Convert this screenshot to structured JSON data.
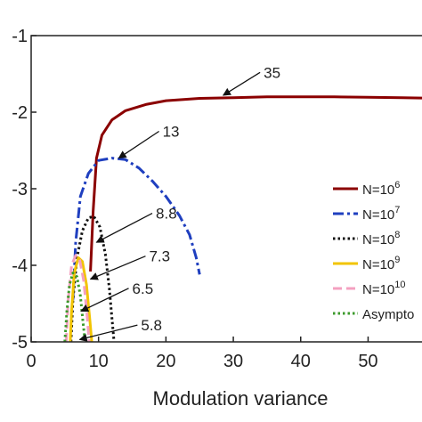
{
  "chart_data": {
    "type": "line",
    "title": "",
    "xlabel": "Modulation variance",
    "ylabel": "",
    "xlim": [
      0,
      58
    ],
    "ylim": [
      -5,
      -1
    ],
    "x_ticks": [
      "0",
      "10",
      "20",
      "30",
      "40",
      "50"
    ],
    "y_ticks": [
      "-1",
      "-2",
      "-3",
      "-4",
      "-5"
    ],
    "grid": false,
    "legend_position": "right",
    "series": [
      {
        "name": "N=10^6",
        "legend_base": "N=10",
        "legend_exp": "6",
        "color": "#8b0000",
        "dash": "solid",
        "x": [
          8.8,
          9.2,
          9.7,
          10.5,
          12,
          14,
          17,
          20,
          25,
          30,
          35,
          40,
          45,
          50,
          55,
          58
        ],
        "y": [
          -4.08,
          -3.3,
          -2.6,
          -2.3,
          -2.1,
          -1.98,
          -1.9,
          -1.85,
          -1.82,
          -1.81,
          -1.8,
          -1.8,
          -1.8,
          -1.805,
          -1.81,
          -1.815
        ]
      },
      {
        "name": "N=10^7",
        "legend_base": "N=10",
        "legend_exp": "7",
        "color": "#1f3fbf",
        "dash": "dash-dot",
        "x": [
          6.2,
          6.6,
          7.3,
          8.5,
          10,
          12,
          14,
          16,
          18,
          20,
          22,
          23.5,
          24.5,
          25
        ],
        "y": [
          -4.45,
          -3.7,
          -3.1,
          -2.8,
          -2.63,
          -2.6,
          -2.62,
          -2.73,
          -2.9,
          -3.1,
          -3.35,
          -3.6,
          -3.9,
          -4.12
        ]
      },
      {
        "name": "N=10^8",
        "legend_base": "N=10",
        "legend_exp": "8",
        "color": "#111111",
        "dash": "dotted",
        "x": [
          5.9,
          6.2,
          6.8,
          7.6,
          8.5,
          9.3,
          10.2,
          11,
          11.6,
          12,
          12.3
        ],
        "y": [
          -5.0,
          -4.45,
          -3.9,
          -3.55,
          -3.38,
          -3.36,
          -3.5,
          -3.85,
          -4.3,
          -4.7,
          -5.0
        ]
      },
      {
        "name": "N=10^9",
        "legend_base": "N=10",
        "legend_exp": "9",
        "color": "#f2c400",
        "dash": "solid",
        "x": [
          5.8,
          6,
          6.4,
          7,
          7.6,
          8.2,
          8.7,
          9
        ],
        "y": [
          -5.0,
          -4.6,
          -4.1,
          -3.9,
          -3.95,
          -4.25,
          -4.7,
          -5.0
        ]
      },
      {
        "name": "N=10^10",
        "legend_base": "N=10",
        "legend_exp": "10",
        "color": "#f4a0c0",
        "dash": "dashed",
        "x": [
          5.2,
          5.5,
          6,
          6.6,
          7.2,
          7.8,
          8.3,
          8.6
        ],
        "y": [
          -5.0,
          -4.45,
          -4.0,
          -3.87,
          -3.93,
          -4.2,
          -4.65,
          -5.0
        ]
      },
      {
        "name": "Asymptotic",
        "legend_base": "Asympto",
        "legend_exp": "",
        "color": "#3a9a2a",
        "dash": "dotted",
        "x": [
          5.0,
          5.3,
          5.7,
          6.2,
          6.8,
          7.3,
          7.7,
          8.0
        ],
        "y": [
          -5.0,
          -4.6,
          -4.25,
          -4.1,
          -4.15,
          -4.4,
          -4.75,
          -5.0
        ]
      }
    ],
    "annotations": [
      {
        "text": "35",
        "x": 34.5,
        "y": -1.55,
        "arrow_to": [
          28.5,
          -1.78
        ]
      },
      {
        "text": "13",
        "x": 19.5,
        "y": -2.32,
        "arrow_to": [
          13,
          -2.6
        ]
      },
      {
        "text": "8.8",
        "x": 18.5,
        "y": -3.39,
        "arrow_to": [
          9.7,
          -3.7
        ]
      },
      {
        "text": "7.3",
        "x": 17.5,
        "y": -3.95,
        "arrow_to": [
          8.8,
          -4.18
        ]
      },
      {
        "text": "6.5",
        "x": 15,
        "y": -4.37,
        "arrow_to": [
          7.4,
          -4.6
        ]
      },
      {
        "text": "5.8",
        "x": 16.3,
        "y": -4.85,
        "arrow_to": [
          7.2,
          -4.97
        ]
      }
    ]
  }
}
